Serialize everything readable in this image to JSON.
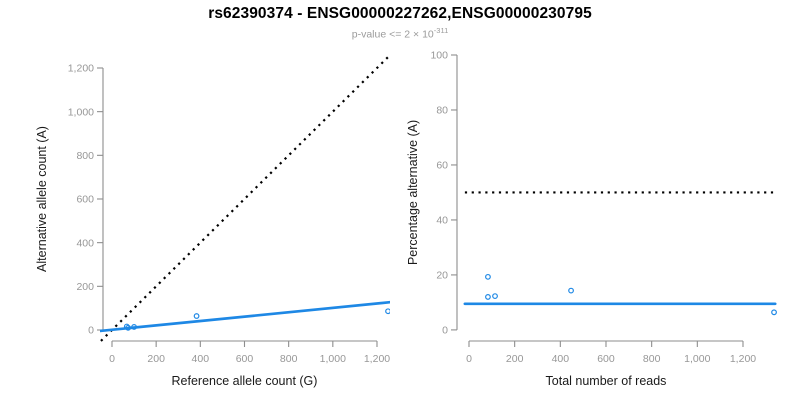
{
  "header": {
    "title": "rs62390374 - ENSG00000227262,ENSG00000230795",
    "subtitle_main": "p-value <= 2 × 10",
    "subtitle_exponent": "-311"
  },
  "colors": {
    "accent_blue": "#1E88E5",
    "reference_line_black": "#000000",
    "axis_gray": "#8e8e8e",
    "tick_label_gray": "#979797",
    "axis_title_black": "#1a1a1a",
    "title_black": "#000000",
    "subtitle_gray": "#9b9b9b"
  },
  "chart_data": {
    "type": "scatter",
    "figure_title": "rs62390374 - ENSG00000227262,ENSG00000230795",
    "figure_subtitle_main": "p-value <= 2 × 10",
    "figure_subtitle_exponent": "-311",
    "grid": false,
    "legend": "none",
    "panels": [
      {
        "name": "allele-counts-panel",
        "type": "scatter",
        "xlabel": "Reference allele count (G)",
        "ylabel": "Alternative allele count (A)",
        "xlim": [
          -54.3,
          1258.9
        ],
        "ylim": [
          -55.0,
          1259.5
        ],
        "xticks": {
          "values": [
            0,
            200,
            400,
            600,
            800,
            1000,
            1200
          ],
          "labels": [
            "0",
            "200",
            "400",
            "600",
            "800",
            "1,000",
            "1,200"
          ]
        },
        "yticks": {
          "values": [
            0,
            200,
            400,
            600,
            800,
            1000,
            1200
          ],
          "labels": [
            "0",
            "200",
            "400",
            "600",
            "800",
            "1,000",
            "1,200"
          ]
        },
        "points": [
          [
            67,
            16
          ],
          [
            73,
            10
          ],
          [
            100,
            14
          ],
          [
            383,
            64
          ],
          [
            1250,
            86
          ]
        ],
        "point_color": "#1E88E5",
        "lines": [
          {
            "name": "identity-line",
            "style": "dotted",
            "color": "#000000",
            "x1": -50,
            "y1": -50,
            "x2": 1270,
            "y2": 1270
          },
          {
            "name": "fit-line",
            "style": "solid",
            "color": "#1E88E5",
            "x1": -54,
            "y1": -4.4,
            "x2": 1259,
            "y2": 127.3
          }
        ]
      },
      {
        "name": "percentage-panel",
        "type": "scatter",
        "xlabel": "Total number of reads",
        "ylabel": "Percentage alternative (A)",
        "xlim": [
          -61.3,
          1357.7
        ],
        "ylim": [
          -4.4,
          100.0
        ],
        "xticks": {
          "values": [
            0,
            200,
            400,
            600,
            800,
            1000,
            1200
          ],
          "labels": [
            "0",
            "200",
            "400",
            "600",
            "800",
            "1,000",
            "1,200"
          ]
        },
        "yticks": {
          "values": [
            0,
            20,
            40,
            60,
            80,
            100
          ],
          "labels": [
            "0",
            "20",
            "40",
            "60",
            "80",
            "100"
          ]
        },
        "points": [
          [
            83,
            19.3
          ],
          [
            83,
            12.0
          ],
          [
            114,
            12.3
          ],
          [
            447,
            14.3
          ],
          [
            1336,
            6.4
          ]
        ],
        "point_color": "#1E88E5",
        "lines": [
          {
            "name": "fifty-percent-line",
            "style": "dotted",
            "color": "#000000",
            "x1": -18,
            "y1": 50,
            "x2": 1341,
            "y2": 50
          },
          {
            "name": "fit-line",
            "style": "solid",
            "color": "#1E88E5",
            "x1": -18,
            "y1": 9.5,
            "x2": 1341,
            "y2": 9.5
          }
        ]
      }
    ]
  }
}
